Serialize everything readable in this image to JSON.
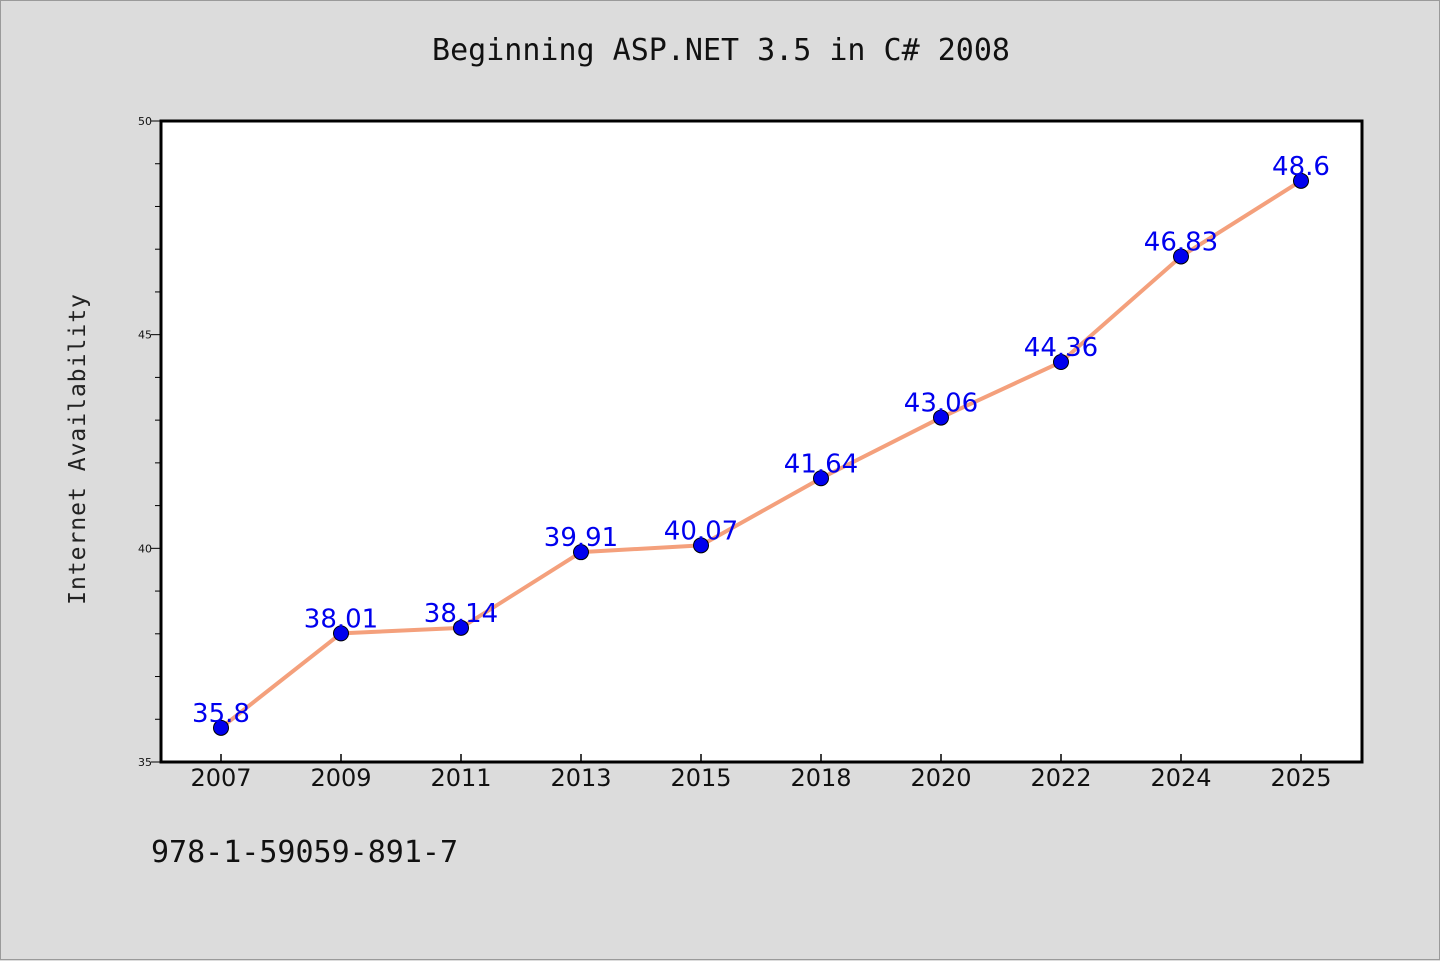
{
  "chart_data": {
    "type": "line",
    "title": "Beginning ASP.NET 3.5 in C# 2008",
    "xlabel": "",
    "ylabel": "Internet Availability",
    "categories": [
      "2007",
      "2009",
      "2011",
      "2013",
      "2015",
      "2018",
      "2020",
      "2022",
      "2024",
      "2025"
    ],
    "series": [
      {
        "values": [
          35.8,
          38.01,
          38.14,
          39.91,
          40.07,
          41.64,
          43.06,
          44.36,
          46.83,
          48.6
        ],
        "data_labels": [
          "35.8",
          "38.01",
          "38.14",
          "39.91",
          "40.07",
          "41.64",
          "43.06",
          "44.36",
          "46.83",
          "48.6"
        ],
        "line_color": "#f4a07c",
        "marker_color": "#0000ee"
      }
    ],
    "ylim": [
      35,
      50
    ],
    "yticks": [
      35,
      40,
      45,
      50
    ],
    "grid": false,
    "legend": "none"
  },
  "footer_text": "978-1-59059-891-7",
  "colors": {
    "background": "#dcdcdc",
    "plot_background": "#ffffff",
    "line": "#f4a07c",
    "marker": "#0000ee",
    "data_label": "#0000ee"
  }
}
